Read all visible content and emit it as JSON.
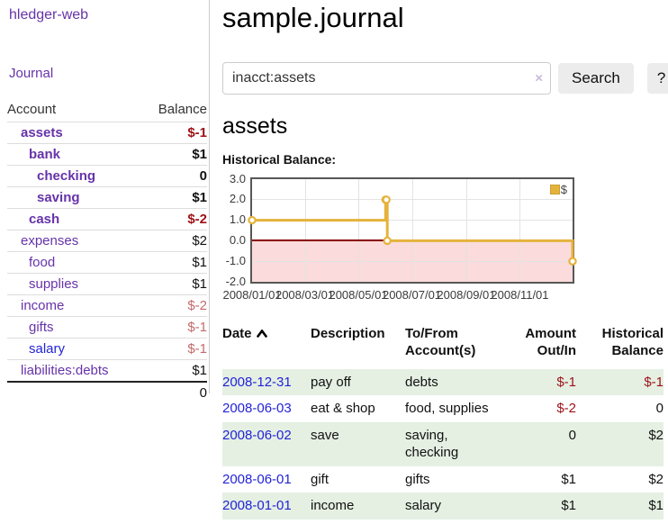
{
  "app": {
    "brand": "hledger-web"
  },
  "sidebar": {
    "journal_link": "Journal",
    "headers": {
      "account": "Account",
      "balance": "Balance"
    },
    "accounts": [
      {
        "name": "assets",
        "depth": 1,
        "bold": true,
        "balance": "$-1"
      },
      {
        "name": "bank",
        "depth": 2,
        "bold": true,
        "balance": "$1"
      },
      {
        "name": "checking",
        "depth": 3,
        "bold": true,
        "balance": "0"
      },
      {
        "name": "saving",
        "depth": 3,
        "bold": true,
        "balance": "$1"
      },
      {
        "name": "cash",
        "depth": 2,
        "bold": true,
        "balance": "$-2"
      },
      {
        "name": "expenses",
        "depth": 1,
        "bold": false,
        "balance": "$2"
      },
      {
        "name": "food",
        "depth": 2,
        "bold": false,
        "balance": "$1"
      },
      {
        "name": "supplies",
        "depth": 2,
        "bold": false,
        "balance": "$1"
      },
      {
        "name": "income",
        "depth": 1,
        "bold": false,
        "balance": "$-2"
      },
      {
        "name": "gifts",
        "depth": 2,
        "bold": false,
        "balance": "$-1"
      },
      {
        "name": "salary",
        "depth": 2,
        "bold": false,
        "balance": "$-1",
        "unvisited": true
      },
      {
        "name": "liabilities:debts",
        "depth": 1,
        "bold": false,
        "balance": "$1"
      }
    ],
    "total": "0"
  },
  "main": {
    "title": "sample.journal",
    "search": {
      "value": "inacct:assets",
      "clear_icon": "×",
      "button_label": "Search",
      "help_label": "?"
    },
    "account_heading": "assets"
  },
  "chart_data": {
    "type": "line",
    "title": "Historical Balance:",
    "step": true,
    "series": [
      {
        "name": "$",
        "color": "#e5b33c",
        "points": [
          [
            "2008-01-01",
            1
          ],
          [
            "2008-06-01",
            2
          ],
          [
            "2008-06-02",
            2
          ],
          [
            "2008-06-03",
            0
          ],
          [
            "2008-12-31",
            -1
          ]
        ]
      }
    ],
    "x_range": [
      "2008-01-01",
      "2008-12-31"
    ],
    "x_ticks": [
      "2008/01/01",
      "2008/03/01",
      "2008/05/01",
      "2008/07/01",
      "2008/09/01",
      "2008/11/01"
    ],
    "y_ticks": [
      "3.0",
      "2.0",
      "1.0",
      "0.0",
      "-1.0",
      "-2.0"
    ],
    "ylim": [
      -2,
      3
    ],
    "legend_position": "top-right",
    "grid": true,
    "zero_line_color": "#8b0000",
    "negative_region_color": "#fbdbdb"
  },
  "register": {
    "headers": [
      "Date",
      "Description",
      "To/From Account(s)",
      "Amount Out/In",
      "Historical Balance"
    ],
    "rows": [
      {
        "date": "2008-12-31",
        "description": "pay off",
        "accounts": "debts",
        "amount": "$-1",
        "balance": "$-1"
      },
      {
        "date": "2008-06-03",
        "description": "eat & shop",
        "accounts": "food, supplies",
        "amount": "$-2",
        "balance": "0"
      },
      {
        "date": "2008-06-02",
        "description": "save",
        "accounts": "saving, checking",
        "amount": "0",
        "balance": "$2"
      },
      {
        "date": "2008-06-01",
        "description": "gift",
        "accounts": "gifts",
        "amount": "$1",
        "balance": "$2"
      },
      {
        "date": "2008-01-01",
        "description": "income",
        "accounts": "salary",
        "amount": "$1",
        "balance": "$1"
      }
    ]
  }
}
